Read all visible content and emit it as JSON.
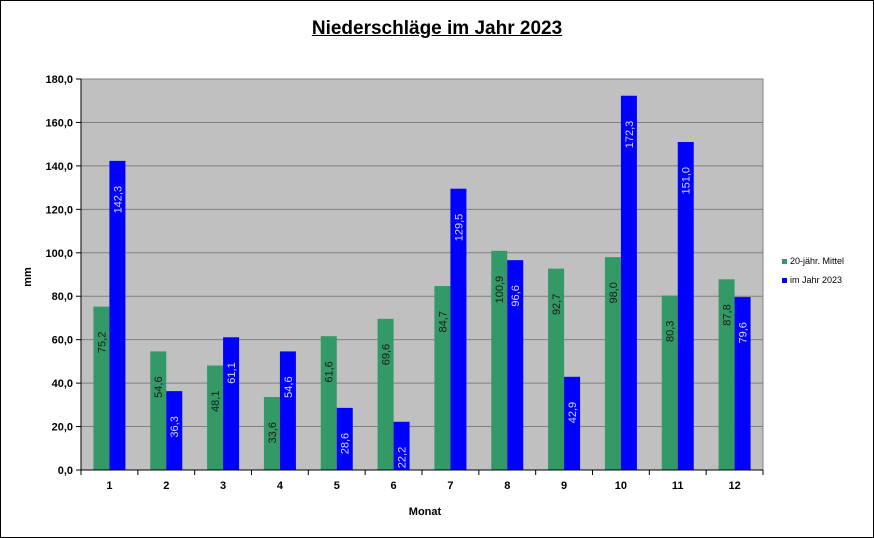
{
  "chart_data": {
    "type": "bar",
    "title": "Niederschläge im Jahr 2023",
    "xlabel": "Monat",
    "ylabel": "mm",
    "ylim": [
      0,
      180
    ],
    "yticks": [
      "0,0",
      "20,0",
      "40,0",
      "60,0",
      "80,0",
      "100,0",
      "120,0",
      "140,0",
      "160,0",
      "180,0"
    ],
    "categories": [
      "1",
      "2",
      "3",
      "4",
      "5",
      "6",
      "7",
      "8",
      "9",
      "10",
      "11",
      "12"
    ],
    "series": [
      {
        "name": "20-jähr. Mittel",
        "color": "#339966",
        "values": [
          75.2,
          54.6,
          48.1,
          33.6,
          61.6,
          69.6,
          84.7,
          100.9,
          92.7,
          98.0,
          80.3,
          87.8
        ],
        "labels": [
          "75,2",
          "54,6",
          "48,1",
          "33,6",
          "61,6",
          "69,6",
          "84,7",
          "100,9",
          "92,7",
          "98,0",
          "80,3",
          "87,8"
        ]
      },
      {
        "name": "im Jahr 2023",
        "color": "#0000ff",
        "values": [
          142.3,
          36.3,
          61.1,
          54.6,
          28.6,
          22.2,
          129.5,
          96.6,
          42.9,
          172.3,
          151.0,
          79.6
        ],
        "labels": [
          "142,3",
          "36,3",
          "61,1",
          "54,6",
          "28,6",
          "22,2",
          "129,5",
          "96,6",
          "42,9",
          "172,3",
          "151,0",
          "79,6"
        ]
      }
    ],
    "grid": true,
    "plot_background": "#c0c0c0",
    "legend_position": "right"
  }
}
